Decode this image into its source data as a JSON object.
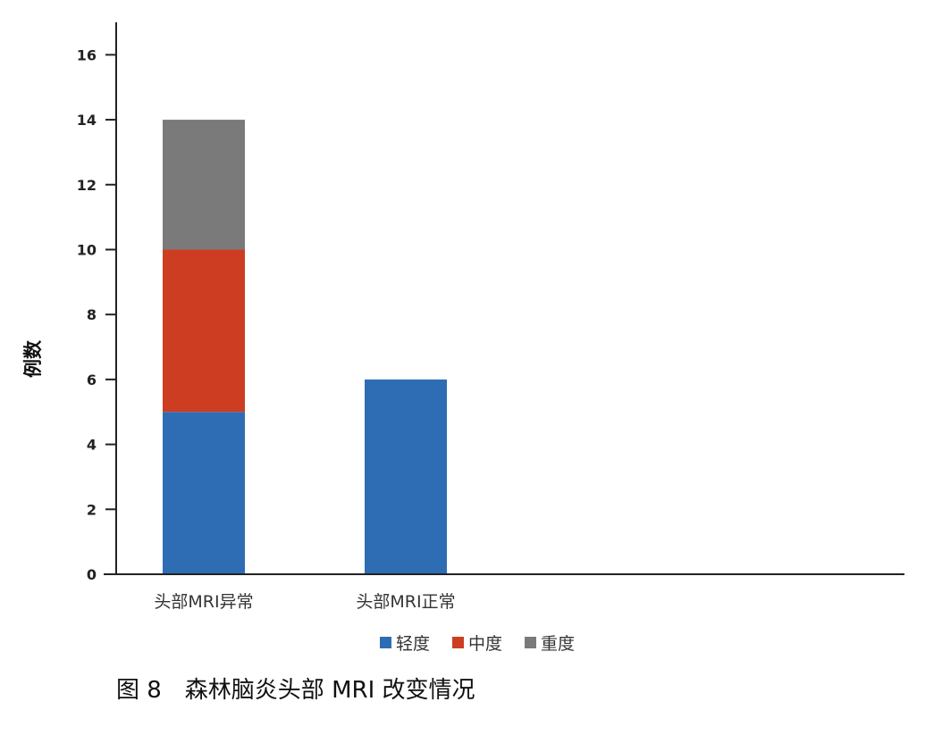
{
  "caption": "图 8　森林脑炎头部 MRI 改变情况",
  "chart_data": {
    "type": "bar",
    "stacked": true,
    "categories": [
      "头部MRI异常",
      "头部MRI正常"
    ],
    "series": [
      {
        "name": "轻度",
        "values": [
          5,
          6
        ],
        "color": "#2e6db4"
      },
      {
        "name": "中度",
        "values": [
          5,
          0
        ],
        "color": "#cc3d22"
      },
      {
        "name": "重度",
        "values": [
          4,
          0
        ],
        "color": "#7a7a7a"
      }
    ],
    "ylabel": "例数",
    "xlabel": "",
    "ylim": [
      0,
      17
    ],
    "yticks": [
      0,
      2,
      4,
      6,
      8,
      10,
      12,
      14,
      16
    ],
    "legend_position": "bottom",
    "grid": false
  }
}
